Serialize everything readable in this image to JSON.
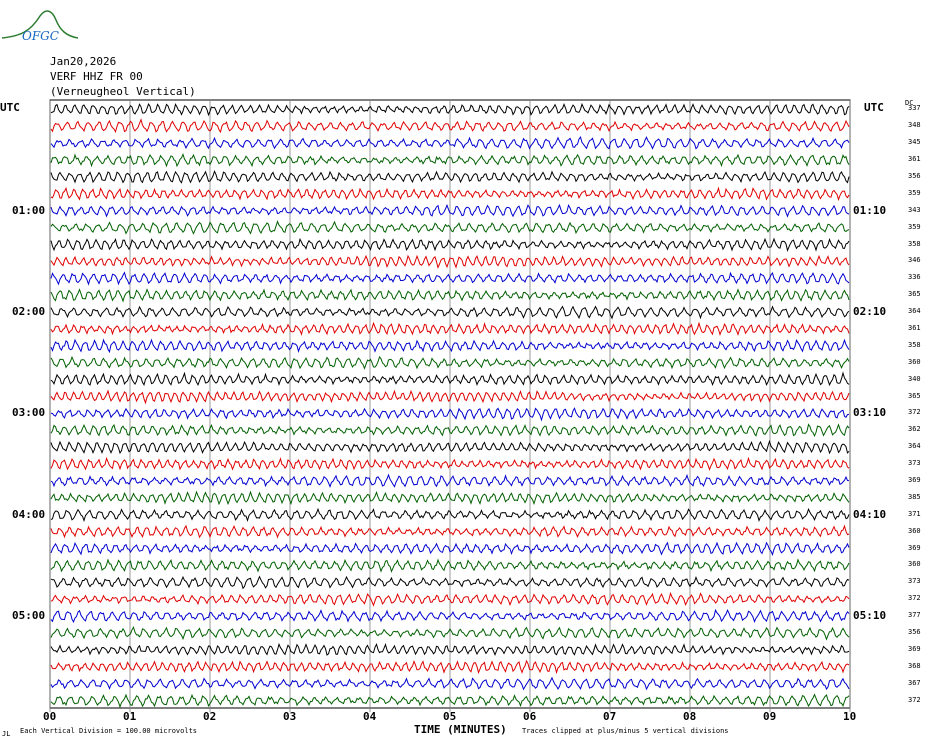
{
  "header": {
    "logo_text": "OFGC",
    "date": "Jan20,2026",
    "station": "VERF HHZ FR 00",
    "location": "(Verneugheol Vertical)"
  },
  "utc_left": "UTC",
  "utc_right": "UTC",
  "dc_label": "DC",
  "footer": {
    "corner": "JL",
    "division": "Each Vertical Division =  100.00 microvolts",
    "axis_title": "TIME (MINUTES)",
    "clip_note": "Traces clipped at plus/minus 5 vertical divisions"
  },
  "colors": {
    "trace_cycle": [
      "#000000",
      "#e00000",
      "#0000d0",
      "#006000"
    ],
    "grid": "#808080"
  },
  "chart_data": {
    "type": "line",
    "x_ticks": [
      "00",
      "01",
      "02",
      "03",
      "04",
      "05",
      "06",
      "07",
      "08",
      "09",
      "10"
    ],
    "xlabel": "TIME (MINUTES)",
    "row_count": 36,
    "left_time_labels": [
      {
        "row": 6,
        "text": "01:00"
      },
      {
        "row": 12,
        "text": "02:00"
      },
      {
        "row": 18,
        "text": "03:00"
      },
      {
        "row": 24,
        "text": "04:00"
      },
      {
        "row": 30,
        "text": "05:00"
      }
    ],
    "right_time_labels": [
      {
        "row": 6,
        "text": "01:10"
      },
      {
        "row": 12,
        "text": "02:10"
      },
      {
        "row": 18,
        "text": "03:10"
      },
      {
        "row": 24,
        "text": "04:10"
      },
      {
        "row": 30,
        "text": "05:10"
      }
    ],
    "dc_offsets": [
      337,
      348,
      345,
      361,
      356,
      359,
      343,
      359,
      358,
      346,
      336,
      365,
      364,
      361,
      358,
      360,
      340,
      365,
      372,
      362,
      364,
      373,
      369,
      385,
      371,
      360,
      369,
      360,
      373,
      372,
      377,
      356,
      369,
      368,
      367,
      372
    ]
  }
}
